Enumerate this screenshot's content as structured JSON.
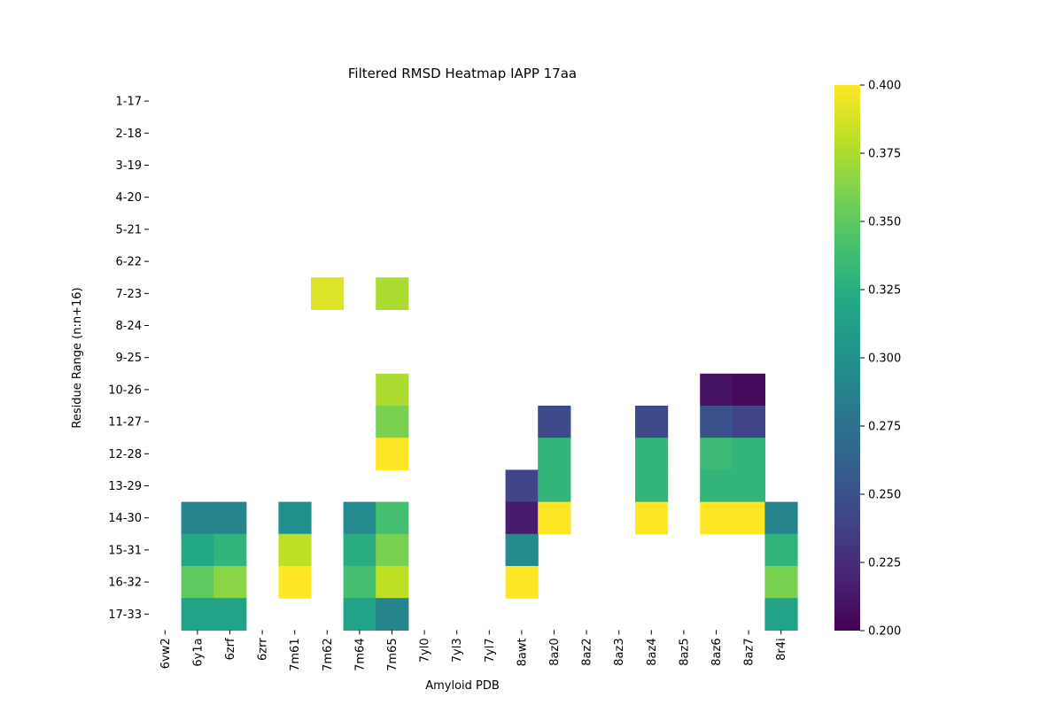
{
  "chart_data": {
    "type": "heatmap",
    "title": "Filtered RMSD Heatmap IAPP 17aa",
    "xlabel": "Amyloid PDB",
    "ylabel": "Residue Range (n:n+16)",
    "x_categories": [
      "6vw2",
      "6y1a",
      "6zrf",
      "6zrr",
      "7m61",
      "7m62",
      "7m64",
      "7m65",
      "7yl0",
      "7yl3",
      "7yl7",
      "8awt",
      "8az0",
      "8az2",
      "8az3",
      "8az4",
      "8az5",
      "8az6",
      "8az7",
      "8r4i"
    ],
    "y_categories": [
      "1-17",
      "2-18",
      "3-19",
      "4-20",
      "5-21",
      "6-22",
      "7-23",
      "8-24",
      "9-25",
      "10-26",
      "11-27",
      "12-28",
      "13-29",
      "14-30",
      "15-31",
      "16-32",
      "17-33"
    ],
    "values": [
      [
        null,
        null,
        null,
        null,
        null,
        null,
        null,
        null,
        null,
        null,
        null,
        null,
        null,
        null,
        null,
        null,
        null,
        null,
        null,
        null
      ],
      [
        null,
        null,
        null,
        null,
        null,
        null,
        null,
        null,
        null,
        null,
        null,
        null,
        null,
        null,
        null,
        null,
        null,
        null,
        null,
        null
      ],
      [
        null,
        null,
        null,
        null,
        null,
        null,
        null,
        null,
        null,
        null,
        null,
        null,
        null,
        null,
        null,
        null,
        null,
        null,
        null,
        null
      ],
      [
        null,
        null,
        null,
        null,
        null,
        null,
        null,
        null,
        null,
        null,
        null,
        null,
        null,
        null,
        null,
        null,
        null,
        null,
        null,
        null
      ],
      [
        null,
        null,
        null,
        null,
        null,
        null,
        null,
        null,
        null,
        null,
        null,
        null,
        null,
        null,
        null,
        null,
        null,
        null,
        null,
        null
      ],
      [
        null,
        null,
        null,
        null,
        null,
        null,
        null,
        null,
        null,
        null,
        null,
        null,
        null,
        null,
        null,
        null,
        null,
        null,
        null,
        null
      ],
      [
        null,
        null,
        null,
        null,
        null,
        0.39,
        null,
        0.375,
        null,
        null,
        null,
        null,
        null,
        null,
        null,
        null,
        null,
        null,
        null,
        null
      ],
      [
        null,
        null,
        null,
        null,
        null,
        null,
        null,
        null,
        null,
        null,
        null,
        null,
        null,
        null,
        null,
        null,
        null,
        null,
        null,
        null
      ],
      [
        null,
        null,
        null,
        null,
        null,
        null,
        null,
        null,
        null,
        null,
        null,
        null,
        null,
        null,
        null,
        null,
        null,
        null,
        null,
        null
      ],
      [
        null,
        null,
        null,
        null,
        null,
        null,
        null,
        0.375,
        null,
        null,
        null,
        null,
        null,
        null,
        null,
        null,
        null,
        0.21,
        0.205,
        null
      ],
      [
        null,
        null,
        null,
        null,
        null,
        null,
        null,
        0.36,
        null,
        null,
        null,
        null,
        0.245,
        null,
        null,
        0.245,
        null,
        0.25,
        0.24,
        null
      ],
      [
        null,
        null,
        null,
        null,
        null,
        null,
        null,
        0.4,
        null,
        null,
        null,
        null,
        0.33,
        null,
        null,
        0.33,
        null,
        0.335,
        0.33,
        null
      ],
      [
        null,
        null,
        null,
        null,
        null,
        null,
        null,
        null,
        null,
        null,
        null,
        0.24,
        0.33,
        null,
        null,
        0.33,
        null,
        0.33,
        0.33,
        null
      ],
      [
        null,
        0.29,
        0.29,
        null,
        0.3,
        null,
        0.295,
        0.34,
        null,
        null,
        null,
        0.215,
        0.4,
        null,
        null,
        0.4,
        null,
        0.4,
        0.4,
        0.29
      ],
      [
        null,
        0.32,
        0.33,
        null,
        0.38,
        null,
        0.325,
        0.36,
        null,
        null,
        null,
        0.295,
        null,
        null,
        null,
        null,
        null,
        null,
        null,
        0.33
      ],
      [
        null,
        0.35,
        0.365,
        null,
        0.4,
        null,
        0.34,
        0.38,
        null,
        null,
        null,
        0.4,
        null,
        null,
        null,
        null,
        null,
        null,
        null,
        0.36
      ],
      [
        null,
        0.315,
        0.315,
        null,
        null,
        null,
        0.315,
        0.29,
        null,
        null,
        null,
        null,
        null,
        null,
        null,
        null,
        null,
        null,
        null,
        0.315
      ]
    ],
    "colormap": "viridis",
    "vmin": 0.2,
    "vmax": 0.4,
    "colorbar_ticks": [
      "0.200",
      "0.225",
      "0.250",
      "0.275",
      "0.300",
      "0.325",
      "0.350",
      "0.375",
      "0.400"
    ],
    "grid": false,
    "legend": "colorbar-right"
  }
}
